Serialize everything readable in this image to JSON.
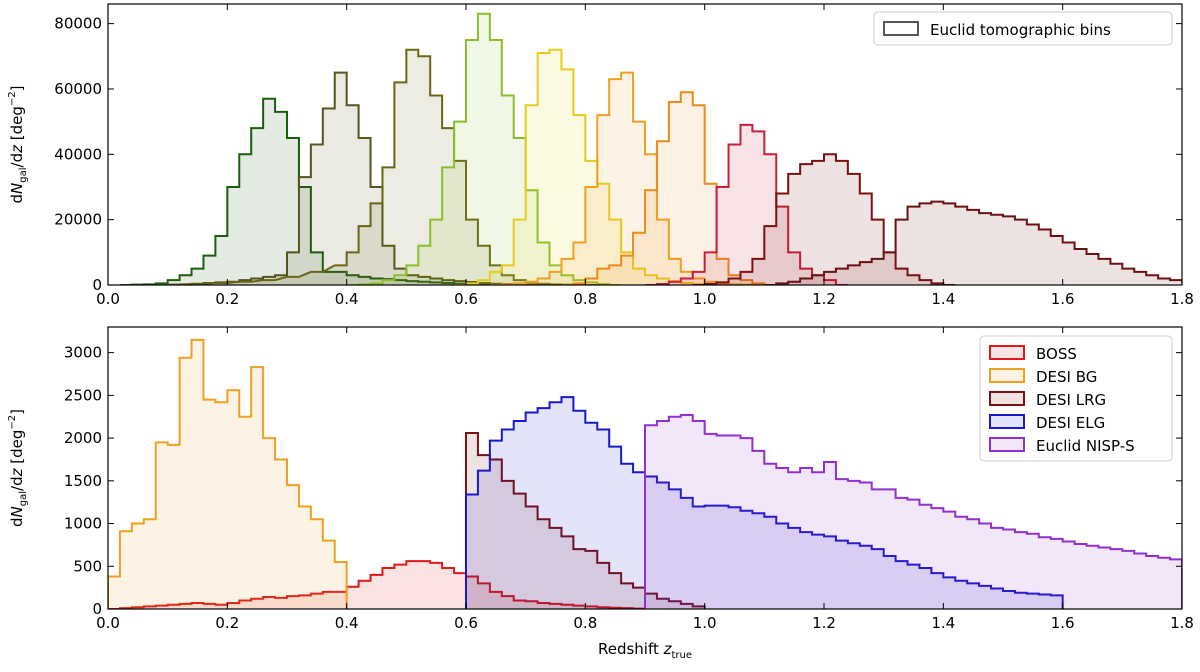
{
  "chart_data": [
    {
      "type": "area",
      "title": "",
      "xlabel": "",
      "ylabel": "dN_gal/dz [deg^-2]",
      "xlim": [
        0.0,
        1.8
      ],
      "ylim": [
        0,
        86000
      ],
      "xticks": [
        "0.0",
        "0.2",
        "0.4",
        "0.6",
        "0.8",
        "1.0",
        "1.2",
        "1.4",
        "1.6",
        "1.8"
      ],
      "yticks": [
        "0",
        "20000",
        "40000",
        "60000",
        "80000"
      ],
      "legend": {
        "position": "top-right",
        "entries": [
          "Euclid tomographic bins"
        ]
      },
      "bin_width": 0.02,
      "series": [
        {
          "color": "#1b5e10",
          "x": [
            0.02,
            0.04,
            0.06,
            0.08,
            0.1,
            0.12,
            0.14,
            0.16,
            0.18,
            0.2,
            0.22,
            0.24,
            0.26,
            0.28,
            0.3,
            0.32,
            0.34,
            0.36,
            0.38,
            0.4,
            0.42,
            0.44,
            0.46,
            0.48,
            0.5,
            0.52,
            0.54,
            0.56,
            0.58,
            0.6,
            0.62,
            0.64,
            0.66,
            0.68
          ],
          "values": [
            0,
            100,
            200,
            500,
            1500,
            3000,
            5000,
            9000,
            15000,
            30000,
            40000,
            48000,
            57000,
            53000,
            45000,
            30000,
            10000,
            4000,
            4000,
            3000,
            2500,
            2000,
            1800,
            1500,
            1200,
            1000,
            800,
            600,
            400,
            300,
            200,
            100,
            50,
            0
          ]
        },
        {
          "color": "#56541c",
          "x": [
            0.1,
            0.12,
            0.14,
            0.16,
            0.18,
            0.2,
            0.22,
            0.24,
            0.26,
            0.28,
            0.3,
            0.32,
            0.34,
            0.36,
            0.38,
            0.4,
            0.42,
            0.44,
            0.46,
            0.48,
            0.5,
            0.52,
            0.54,
            0.56,
            0.58,
            0.6,
            0.62,
            0.64,
            0.66,
            0.68,
            0.7,
            0.72
          ],
          "values": [
            100,
            200,
            400,
            600,
            800,
            1000,
            1500,
            2000,
            2500,
            3000,
            10000,
            33000,
            43000,
            54000,
            65000,
            55000,
            45000,
            30000,
            12000,
            5000,
            3000,
            2500,
            2000,
            1500,
            1200,
            900,
            600,
            400,
            300,
            200,
            100,
            0
          ]
        },
        {
          "color": "#6b6518",
          "x": [
            0.1,
            0.14,
            0.18,
            0.22,
            0.26,
            0.3,
            0.34,
            0.38,
            0.4,
            0.42,
            0.44,
            0.46,
            0.48,
            0.5,
            0.52,
            0.54,
            0.56,
            0.58,
            0.6,
            0.62,
            0.64,
            0.66,
            0.68,
            0.7,
            0.72,
            0.74,
            0.76,
            0.78,
            0.8
          ],
          "values": [
            100,
            300,
            600,
            1000,
            1500,
            2500,
            4000,
            6000,
            10000,
            18000,
            25000,
            36000,
            62000,
            72000,
            70000,
            58000,
            48000,
            38000,
            20000,
            12000,
            6000,
            3000,
            1500,
            800,
            400,
            200,
            100,
            50,
            0
          ]
        },
        {
          "color": "#8bbf2a",
          "x": [
            0.4,
            0.42,
            0.44,
            0.46,
            0.48,
            0.5,
            0.52,
            0.54,
            0.56,
            0.58,
            0.6,
            0.62,
            0.64,
            0.66,
            0.68,
            0.7,
            0.72,
            0.74,
            0.76,
            0.78,
            0.8,
            0.82,
            0.84
          ],
          "values": [
            0,
            200,
            500,
            1500,
            3000,
            6000,
            12000,
            20000,
            36000,
            50000,
            75000,
            83000,
            75000,
            58000,
            45000,
            29000,
            13000,
            6000,
            3000,
            1500,
            800,
            300,
            0
          ]
        },
        {
          "color": "#e8cc1c",
          "x": [
            0.58,
            0.6,
            0.62,
            0.64,
            0.66,
            0.68,
            0.7,
            0.72,
            0.74,
            0.76,
            0.78,
            0.8,
            0.82,
            0.84,
            0.86,
            0.88,
            0.9,
            0.92,
            0.94,
            0.96,
            0.98,
            1.0,
            1.02
          ],
          "values": [
            0,
            500,
            1500,
            4000,
            6000,
            20000,
            55000,
            71000,
            72000,
            66000,
            52000,
            38000,
            31000,
            20000,
            10000,
            5000,
            3000,
            2000,
            1200,
            600,
            300,
            100,
            0
          ]
        },
        {
          "color": "#f0a020",
          "x": [
            0.64,
            0.66,
            0.68,
            0.7,
            0.72,
            0.74,
            0.76,
            0.78,
            0.8,
            0.82,
            0.84,
            0.86,
            0.88,
            0.9,
            0.92,
            0.94,
            0.96,
            0.98,
            1.0,
            1.02,
            1.04,
            1.06,
            1.08
          ],
          "values": [
            0,
            200,
            500,
            1000,
            2000,
            4000,
            8000,
            13000,
            30000,
            52000,
            63000,
            65000,
            50000,
            40000,
            20000,
            8000,
            4000,
            2000,
            1000,
            500,
            200,
            100,
            0
          ]
        },
        {
          "color": "#ec8a1a",
          "x": [
            0.76,
            0.78,
            0.8,
            0.82,
            0.84,
            0.86,
            0.88,
            0.9,
            0.92,
            0.94,
            0.96,
            0.98,
            1.0,
            1.02,
            1.04,
            1.06,
            1.08,
            1.1
          ],
          "values": [
            0,
            500,
            2000,
            5000,
            6000,
            9000,
            16000,
            29000,
            44000,
            56000,
            59000,
            55000,
            31000,
            8000,
            3000,
            1500,
            500,
            0
          ]
        },
        {
          "color": "#c8203a",
          "x": [
            0.9,
            0.92,
            0.94,
            0.96,
            0.98,
            1.0,
            1.02,
            1.04,
            1.06,
            1.08,
            1.1,
            1.12,
            1.14,
            1.16,
            1.18,
            1.2,
            1.22
          ],
          "values": [
            0,
            300,
            1000,
            2000,
            4000,
            10000,
            30000,
            43000,
            49000,
            47000,
            40000,
            24000,
            10000,
            5000,
            3000,
            1500,
            0
          ]
        },
        {
          "color": "#7a1010",
          "x": [
            0.98,
            1.0,
            1.02,
            1.04,
            1.06,
            1.08,
            1.1,
            1.12,
            1.14,
            1.16,
            1.18,
            1.2,
            1.22,
            1.24,
            1.26,
            1.28,
            1.3,
            1.32,
            1.34,
            1.36,
            1.38,
            1.4
          ],
          "values": [
            0,
            300,
            800,
            2000,
            4000,
            8000,
            18000,
            28000,
            34000,
            37000,
            38000,
            40000,
            38000,
            34000,
            28000,
            20000,
            10000,
            5000,
            3000,
            1500,
            500,
            0
          ]
        },
        {
          "color": "#6a1212",
          "x": [
            1.1,
            1.12,
            1.14,
            1.16,
            1.18,
            1.2,
            1.22,
            1.24,
            1.26,
            1.28,
            1.3,
            1.32,
            1.34,
            1.36,
            1.38,
            1.4,
            1.42,
            1.44,
            1.46,
            1.48,
            1.5,
            1.52,
            1.54,
            1.56,
            1.58,
            1.6,
            1.62,
            1.64,
            1.66,
            1.68,
            1.7,
            1.72,
            1.74,
            1.76,
            1.78,
            1.8
          ],
          "values": [
            0,
            500,
            1000,
            2000,
            3000,
            4000,
            5000,
            6000,
            7000,
            8000,
            10000,
            20000,
            24000,
            25000,
            25500,
            25000,
            24000,
            23000,
            22000,
            21500,
            21000,
            20000,
            18500,
            17000,
            15000,
            13000,
            11000,
            9500,
            8000,
            6500,
            5000,
            4000,
            3000,
            2000,
            1500,
            1000
          ]
        }
      ]
    },
    {
      "type": "area",
      "title": "",
      "xlabel": "Redshift z_true",
      "ylabel": "dN_gal/dz [deg^-2]",
      "xlim": [
        0.0,
        1.8
      ],
      "ylim": [
        0,
        3300
      ],
      "xticks": [
        "0.0",
        "0.2",
        "0.4",
        "0.6",
        "0.8",
        "1.0",
        "1.2",
        "1.4",
        "1.6",
        "1.8"
      ],
      "yticks": [
        "0",
        "500",
        "1000",
        "1500",
        "2000",
        "2500",
        "3000"
      ],
      "legend": {
        "position": "top-right",
        "entries": [
          "BOSS",
          "DESI BG",
          "DESI LRG",
          "DESI ELG",
          "Euclid NISP-S"
        ]
      },
      "bin_width": 0.02,
      "series": [
        {
          "name": "BOSS",
          "color": "#e01818",
          "x": [
            0.0,
            0.02,
            0.04,
            0.06,
            0.08,
            0.1,
            0.12,
            0.14,
            0.16,
            0.18,
            0.2,
            0.22,
            0.24,
            0.26,
            0.28,
            0.3,
            0.32,
            0.34,
            0.36,
            0.38,
            0.4,
            0.42,
            0.44,
            0.46,
            0.48,
            0.5,
            0.52,
            0.54,
            0.56,
            0.58,
            0.6,
            0.62,
            0.64,
            0.66,
            0.68,
            0.7,
            0.72,
            0.74,
            0.76,
            0.78,
            0.8,
            0.82,
            0.84,
            0.86,
            0.88
          ],
          "values": [
            0,
            10,
            20,
            30,
            40,
            50,
            60,
            70,
            60,
            50,
            70,
            100,
            120,
            140,
            130,
            150,
            160,
            180,
            200,
            200,
            260,
            330,
            400,
            480,
            520,
            560,
            560,
            540,
            480,
            420,
            380,
            300,
            200,
            150,
            100,
            90,
            70,
            60,
            50,
            40,
            30,
            20,
            15,
            10,
            5
          ]
        },
        {
          "name": "DESI BG",
          "color": "#f0a020",
          "x": [
            0.0,
            0.02,
            0.04,
            0.06,
            0.08,
            0.1,
            0.12,
            0.14,
            0.16,
            0.18,
            0.2,
            0.22,
            0.24,
            0.26,
            0.28,
            0.3,
            0.32,
            0.34,
            0.36,
            0.38
          ],
          "values": [
            380,
            910,
            1000,
            1050,
            1950,
            1920,
            2940,
            3150,
            2450,
            2420,
            2560,
            2250,
            2830,
            2000,
            1750,
            1450,
            1200,
            1050,
            800,
            550
          ]
        },
        {
          "name": "DESI LRG",
          "color": "#7a1010",
          "x": [
            0.6,
            0.62,
            0.64,
            0.66,
            0.68,
            0.7,
            0.72,
            0.74,
            0.76,
            0.78,
            0.8,
            0.82,
            0.84,
            0.86,
            0.88,
            0.9,
            0.92,
            0.94,
            0.96,
            0.98
          ],
          "values": [
            2060,
            1800,
            1750,
            1500,
            1350,
            1200,
            1050,
            950,
            850,
            700,
            680,
            540,
            420,
            300,
            250,
            180,
            120,
            90,
            60,
            30
          ]
        },
        {
          "name": "DESI ELG",
          "color": "#1818d0",
          "x": [
            0.6,
            0.62,
            0.64,
            0.66,
            0.68,
            0.7,
            0.72,
            0.74,
            0.76,
            0.78,
            0.8,
            0.82,
            0.84,
            0.86,
            0.88,
            0.9,
            0.92,
            0.94,
            0.96,
            0.98,
            1.0,
            1.02,
            1.04,
            1.06,
            1.08,
            1.1,
            1.12,
            1.14,
            1.16,
            1.18,
            1.2,
            1.22,
            1.24,
            1.26,
            1.28,
            1.3,
            1.32,
            1.34,
            1.36,
            1.38,
            1.4,
            1.42,
            1.44,
            1.46,
            1.48,
            1.5,
            1.52,
            1.54,
            1.56,
            1.58
          ],
          "values": [
            1340,
            1620,
            1970,
            2100,
            2200,
            2300,
            2350,
            2420,
            2480,
            2320,
            2180,
            2100,
            1900,
            1700,
            1600,
            1550,
            1480,
            1400,
            1300,
            1200,
            1210,
            1210,
            1190,
            1150,
            1120,
            1080,
            1000,
            950,
            900,
            870,
            850,
            800,
            770,
            740,
            700,
            620,
            560,
            520,
            480,
            420,
            370,
            330,
            300,
            270,
            240,
            210,
            190,
            180,
            170,
            160
          ]
        },
        {
          "name": "Euclid NISP-S",
          "color": "#9030d0",
          "x": [
            0.9,
            0.92,
            0.94,
            0.96,
            0.98,
            1.0,
            1.02,
            1.04,
            1.06,
            1.08,
            1.1,
            1.12,
            1.14,
            1.16,
            1.18,
            1.2,
            1.22,
            1.24,
            1.26,
            1.28,
            1.3,
            1.32,
            1.34,
            1.36,
            1.38,
            1.4,
            1.42,
            1.44,
            1.46,
            1.48,
            1.5,
            1.52,
            1.54,
            1.56,
            1.58,
            1.6,
            1.62,
            1.64,
            1.66,
            1.68,
            1.7,
            1.72,
            1.74,
            1.76,
            1.78
          ],
          "values": [
            2150,
            2200,
            2250,
            2270,
            2200,
            2050,
            2030,
            2030,
            2000,
            1850,
            1700,
            1650,
            1600,
            1650,
            1600,
            1720,
            1520,
            1500,
            1480,
            1400,
            1400,
            1300,
            1280,
            1220,
            1180,
            1140,
            1080,
            1050,
            1000,
            950,
            930,
            900,
            880,
            840,
            820,
            790,
            760,
            740,
            720,
            700,
            680,
            650,
            620,
            600,
            580
          ]
        }
      ]
    }
  ]
}
